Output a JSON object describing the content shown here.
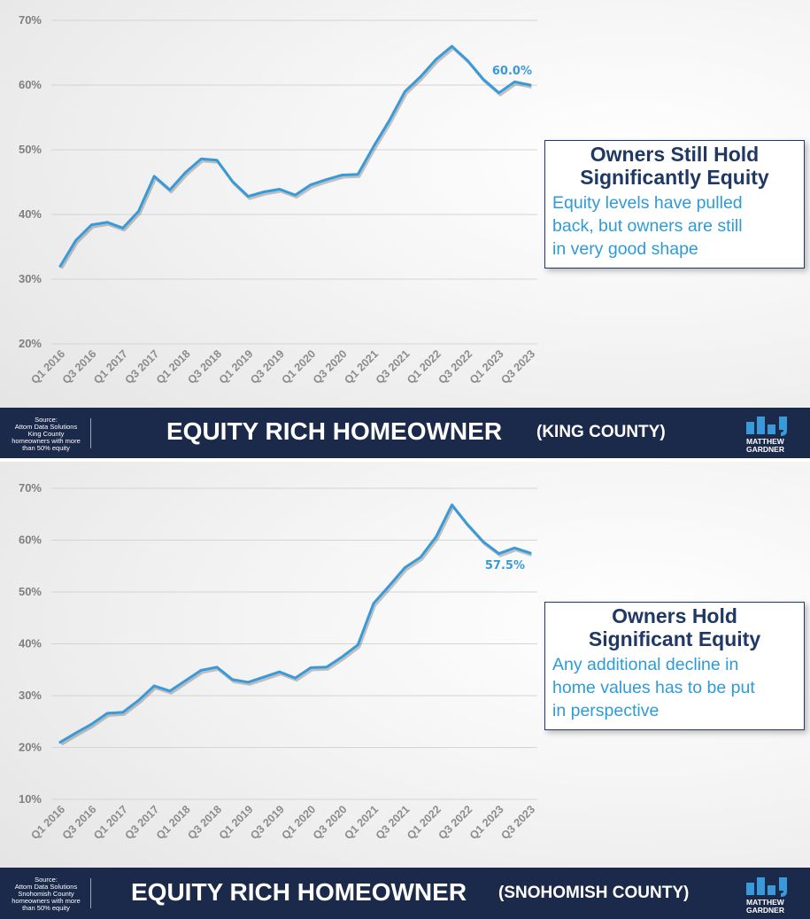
{
  "panels": [
    {
      "banner_title": "EQUITY RICH HOMEOWNER",
      "banner_subtitle": "(KING COUNTY)",
      "source_lines": [
        "Source:",
        "Attom Data Solutions",
        "King County",
        "homeowners with more",
        "than 50% equity"
      ],
      "logo_lines": [
        "MATTHEW",
        "GARDNER"
      ],
      "callout": {
        "title_lines": [
          "Owners Still Hold",
          "Significantly Equity"
        ],
        "body_lines": [
          "Equity levels have pulled",
          "back, but owners are still",
          "in very good shape"
        ]
      },
      "end_label": "60.0%"
    },
    {
      "banner_title": "EQUITY RICH HOMEOWNER",
      "banner_subtitle": "(SNOHOMISH COUNTY)",
      "source_lines": [
        "Source:",
        "Attom Data Solutions",
        "Snohomish County",
        "homeowners with more",
        "than 50% equity"
      ],
      "logo_lines": [
        "MATTHEW",
        "GARDNER"
      ],
      "callout": {
        "title_lines": [
          "Owners Hold",
          "Significant Equity"
        ],
        "body_lines": [
          "Any additional decline in",
          "home values has to be put",
          "in perspective"
        ]
      },
      "end_label": "57.5%"
    }
  ],
  "colors": {
    "line": "#3a9ad9",
    "navy": "#1b2a4a",
    "callout_title": "#1f3864",
    "callout_body": "#2e9bd7",
    "tick": "#7f7f7f"
  },
  "chart_data": [
    {
      "type": "line",
      "x": [
        "Q1 2016",
        "Q2 2016",
        "Q3 2016",
        "Q4 2016",
        "Q1 2017",
        "Q2 2017",
        "Q3 2017",
        "Q4 2017",
        "Q1 2018",
        "Q2 2018",
        "Q3 2018",
        "Q4 2018",
        "Q1 2019",
        "Q2 2019",
        "Q3 2019",
        "Q4 2019",
        "Q1 2020",
        "Q2 2020",
        "Q3 2020",
        "Q4 2020",
        "Q1 2021",
        "Q2 2021",
        "Q3 2021",
        "Q4 2021",
        "Q1 2022",
        "Q2 2022",
        "Q3 2022",
        "Q4 2022",
        "Q1 2023",
        "Q2 2023",
        "Q3 2023"
      ],
      "x_tick_labels": [
        "Q1 2016",
        "Q3 2016",
        "Q1 2017",
        "Q3 2017",
        "Q1 2018",
        "Q3 2018",
        "Q1 2019",
        "Q3 2019",
        "Q1 2020",
        "Q3 2020",
        "Q1 2021",
        "Q3 2021",
        "Q1 2022",
        "Q3 2022",
        "Q1 2023",
        "Q3 2023"
      ],
      "series": [
        {
          "values": [
            32.0,
            36.0,
            38.4,
            38.8,
            37.9,
            40.5,
            45.9,
            43.8,
            46.5,
            48.6,
            48.4,
            45.1,
            42.8,
            43.5,
            43.9,
            43.0,
            44.6,
            45.4,
            46.1,
            46.2,
            50.5,
            54.5,
            59.0,
            61.3,
            64.0,
            66.0,
            63.8,
            60.9,
            58.8,
            60.5,
            60.0
          ]
        }
      ],
      "y_tick_labels": [
        "20%",
        "30%",
        "40%",
        "50%",
        "60%",
        "70%"
      ],
      "ylim": [
        20,
        70
      ],
      "grid": true,
      "end_label": "60.0%"
    },
    {
      "type": "line",
      "x": [
        "Q1 2016",
        "Q2 2016",
        "Q3 2016",
        "Q4 2016",
        "Q1 2017",
        "Q2 2017",
        "Q3 2017",
        "Q4 2017",
        "Q1 2018",
        "Q2 2018",
        "Q3 2018",
        "Q4 2018",
        "Q1 2019",
        "Q2 2019",
        "Q3 2019",
        "Q4 2019",
        "Q1 2020",
        "Q2 2020",
        "Q3 2020",
        "Q4 2020",
        "Q1 2021",
        "Q2 2021",
        "Q3 2021",
        "Q4 2021",
        "Q1 2022",
        "Q2 2022",
        "Q3 2022",
        "Q4 2022",
        "Q1 2023",
        "Q2 2023",
        "Q3 2023"
      ],
      "x_tick_labels": [
        "Q1 2016",
        "Q3 2016",
        "Q1 2017",
        "Q3 2017",
        "Q1 2018",
        "Q3 2018",
        "Q1 2019",
        "Q3 2019",
        "Q1 2020",
        "Q3 2020",
        "Q1 2021",
        "Q3 2021",
        "Q1 2022",
        "Q3 2022",
        "Q1 2023",
        "Q3 2023"
      ],
      "series": [
        {
          "values": [
            21.0,
            22.8,
            24.5,
            26.6,
            26.8,
            29.1,
            31.9,
            30.9,
            32.9,
            34.9,
            35.5,
            33.1,
            32.6,
            33.6,
            34.6,
            33.4,
            35.4,
            35.5,
            37.5,
            39.8,
            47.8,
            51.2,
            54.7,
            56.7,
            60.7,
            66.8,
            63.0,
            59.7,
            57.4,
            58.5,
            57.5
          ]
        }
      ],
      "y_tick_labels": [
        "10%",
        "20%",
        "30%",
        "40%",
        "50%",
        "60%",
        "70%"
      ],
      "ylim": [
        10,
        70
      ],
      "grid": true,
      "end_label": "57.5%"
    }
  ]
}
